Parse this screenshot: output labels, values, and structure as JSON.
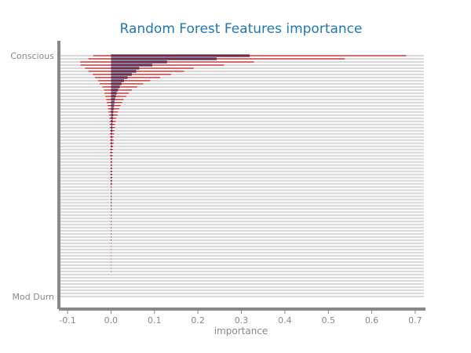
{
  "chart_data": {
    "type": "bar",
    "orientation": "horizontal",
    "title": "Random Forest Features importance",
    "xlabel": "importance",
    "ylabel": "",
    "xlim": [
      -0.12,
      0.72
    ],
    "x_ticks": [
      "-0.1",
      "0.0",
      "0.1",
      "0.2",
      "0.3",
      "0.4",
      "0.5",
      "0.6",
      "0.7"
    ],
    "x_tick_values": [
      -0.1,
      0,
      0.1,
      0.2,
      0.3,
      0.4,
      0.5,
      0.6,
      0.7
    ],
    "grid": "horizontal",
    "legend": "none",
    "category_count": 78,
    "visible_category_labels": {
      "first": "Conscious",
      "last": "Mod Durn"
    },
    "values": [
      0.319,
      0.243,
      0.129,
      0.095,
      0.065,
      0.058,
      0.048,
      0.038,
      0.03,
      0.024,
      0.02,
      0.016,
      0.013,
      0.011,
      0.009,
      0.008,
      0.007,
      0.006,
      0.005,
      0.005,
      0.004,
      0.004,
      0.003,
      0.003,
      0.003,
      0.002,
      0.002,
      0.002,
      0.002,
      0.002,
      0.001,
      0.001,
      0.001,
      0.001,
      0.001,
      0.001,
      0.001,
      0.001,
      0.001,
      0.001,
      0.001,
      0.001,
      0.0005,
      0.0005,
      0.0005,
      0.0005,
      0.0005,
      0.0005,
      0.0005,
      0.0005,
      0.0003,
      0.0003,
      0.0003,
      0.0003,
      0.0003,
      0.0002,
      0.0002,
      0.0002,
      0.0002,
      0.0002,
      0.0001,
      0.0001,
      0.0001,
      0.0001,
      0.0001,
      0.0001,
      0.0001,
      0.0001,
      0.0001,
      0.0001,
      0.0,
      0.0,
      0.0,
      0.0,
      0.0,
      0.0,
      0.0,
      0.0
    ],
    "errors": [
      0.36,
      0.295,
      0.2,
      0.165,
      0.125,
      0.11,
      0.09,
      0.075,
      0.06,
      0.05,
      0.04,
      0.032,
      0.028,
      0.024,
      0.02,
      0.018,
      0.015,
      0.013,
      0.011,
      0.01,
      0.008,
      0.007,
      0.006,
      0.006,
      0.005,
      0.005,
      0.004,
      0.004,
      0.004,
      0.003,
      0.003,
      0.003,
      0.003,
      0.002,
      0.002,
      0.002,
      0.002,
      0.002,
      0.002,
      0.002,
      0.002,
      0.002,
      0.001,
      0.001,
      0.001,
      0.001,
      0.001,
      0.001,
      0.001,
      0.001,
      0.001,
      0.001,
      0.001,
      0.001,
      0.001,
      0.001,
      0.001,
      0.001,
      0.001,
      0.001,
      0.0005,
      0.0005,
      0.0005,
      0.0005,
      0.0005,
      0.0005,
      0.0005,
      0.0005,
      0.0005,
      0.0005,
      0.0,
      0.0,
      0.0,
      0.0,
      0.0,
      0.0,
      0.0,
      0.0
    ],
    "colors": {
      "bar": "#3b4a7a",
      "error_bar": "#cc0000",
      "title": "#1f77b4",
      "axis": "#888888",
      "row_band": "#d9d9d9"
    }
  }
}
